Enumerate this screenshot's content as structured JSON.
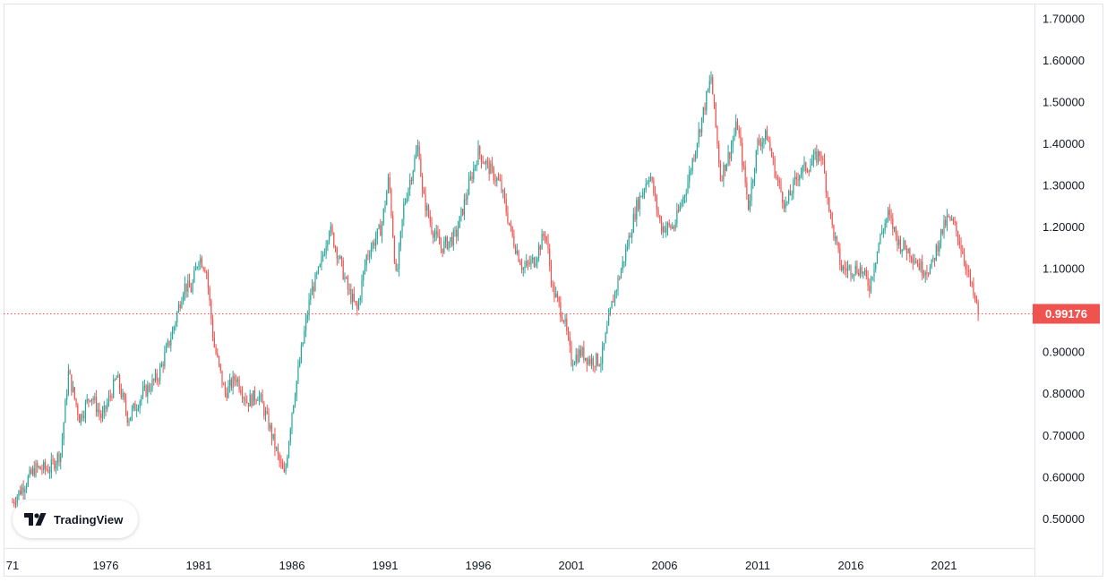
{
  "chart_data": {
    "type": "candlestick",
    "title": "",
    "xlabel": "",
    "ylabel": "",
    "x_start": 1971.0,
    "x_end": 2022.85,
    "ylim": [
      0.46,
      1.74
    ],
    "grid": false,
    "legend": "none",
    "y_ticks": [
      "1.70000",
      "1.60000",
      "1.50000",
      "1.40000",
      "1.30000",
      "1.20000",
      "1.10000",
      "0.90000",
      "0.80000",
      "0.70000",
      "0.60000",
      "0.50000"
    ],
    "x_ticks": [
      {
        "year": 1971,
        "label": "71"
      },
      {
        "year": 1976,
        "label": "1976"
      },
      {
        "year": 1981,
        "label": "1981"
      },
      {
        "year": 1986,
        "label": "1986"
      },
      {
        "year": 1991,
        "label": "1991"
      },
      {
        "year": 1996,
        "label": "1996"
      },
      {
        "year": 2001,
        "label": "2001"
      },
      {
        "year": 2006,
        "label": "2006"
      },
      {
        "year": 2011,
        "label": "2011"
      },
      {
        "year": 2016,
        "label": "2016"
      },
      {
        "year": 2021,
        "label": "2021"
      }
    ],
    "current_price": {
      "value": 0.99176,
      "label": "0.99176"
    },
    "up_color": "#26a69a",
    "down_color": "#ef5350",
    "price_path": [
      [
        1971.0,
        0.54
      ],
      [
        1971.6,
        0.58
      ],
      [
        1972.2,
        0.62
      ],
      [
        1973.0,
        0.62
      ],
      [
        1973.6,
        0.66
      ],
      [
        1974.0,
        0.85
      ],
      [
        1974.6,
        0.74
      ],
      [
        1975.2,
        0.8
      ],
      [
        1975.8,
        0.74
      ],
      [
        1976.6,
        0.84
      ],
      [
        1977.2,
        0.74
      ],
      [
        1978.0,
        0.8
      ],
      [
        1978.8,
        0.84
      ],
      [
        1979.6,
        0.95
      ],
      [
        1980.2,
        1.06
      ],
      [
        1980.6,
        1.05
      ],
      [
        1981.0,
        1.13
      ],
      [
        1981.4,
        1.1
      ],
      [
        1981.8,
        0.92
      ],
      [
        1982.4,
        0.8
      ],
      [
        1983.0,
        0.84
      ],
      [
        1983.6,
        0.78
      ],
      [
        1984.2,
        0.8
      ],
      [
        1984.8,
        0.72
      ],
      [
        1985.3,
        0.64
      ],
      [
        1985.6,
        0.6
      ],
      [
        1986.0,
        0.76
      ],
      [
        1986.5,
        0.9
      ],
      [
        1987.0,
        1.04
      ],
      [
        1987.5,
        1.1
      ],
      [
        1988.0,
        1.2
      ],
      [
        1988.5,
        1.13
      ],
      [
        1989.0,
        1.05
      ],
      [
        1989.5,
        1.0
      ],
      [
        1990.0,
        1.13
      ],
      [
        1990.8,
        1.2
      ],
      [
        1991.2,
        1.32
      ],
      [
        1991.6,
        1.07
      ],
      [
        1992.0,
        1.25
      ],
      [
        1992.8,
        1.4
      ],
      [
        1993.0,
        1.28
      ],
      [
        1993.5,
        1.2
      ],
      [
        1994.0,
        1.15
      ],
      [
        1994.8,
        1.18
      ],
      [
        1995.5,
        1.3
      ],
      [
        1996.0,
        1.38
      ],
      [
        1996.6,
        1.34
      ],
      [
        1997.2,
        1.3
      ],
      [
        1997.8,
        1.18
      ],
      [
        1998.4,
        1.1
      ],
      [
        1999.0,
        1.12
      ],
      [
        1999.6,
        1.19
      ],
      [
        2000.0,
        1.05
      ],
      [
        2000.6,
        0.98
      ],
      [
        2001.0,
        0.88
      ],
      [
        2001.5,
        0.9
      ],
      [
        2002.0,
        0.88
      ],
      [
        2002.6,
        0.88
      ],
      [
        2003.2,
        1.02
      ],
      [
        2003.8,
        1.12
      ],
      [
        2004.5,
        1.25
      ],
      [
        2005.2,
        1.33
      ],
      [
        2005.8,
        1.2
      ],
      [
        2006.5,
        1.2
      ],
      [
        2007.2,
        1.3
      ],
      [
        2007.8,
        1.42
      ],
      [
        2008.5,
        1.56
      ],
      [
        2009.0,
        1.32
      ],
      [
        2009.5,
        1.38
      ],
      [
        2009.9,
        1.45
      ],
      [
        2010.5,
        1.25
      ],
      [
        2011.0,
        1.4
      ],
      [
        2011.5,
        1.42
      ],
      [
        2012.0,
        1.32
      ],
      [
        2012.5,
        1.25
      ],
      [
        2013.2,
        1.33
      ],
      [
        2013.8,
        1.35
      ],
      [
        2014.4,
        1.38
      ],
      [
        2015.0,
        1.2
      ],
      [
        2015.5,
        1.1
      ],
      [
        2016.0,
        1.1
      ],
      [
        2016.5,
        1.1
      ],
      [
        2017.0,
        1.06
      ],
      [
        2017.6,
        1.18
      ],
      [
        2018.0,
        1.23
      ],
      [
        2018.6,
        1.16
      ],
      [
        2019.2,
        1.14
      ],
      [
        2019.8,
        1.1
      ],
      [
        2020.3,
        1.1
      ],
      [
        2020.8,
        1.18
      ],
      [
        2021.2,
        1.22
      ],
      [
        2021.6,
        1.2
      ],
      [
        2022.0,
        1.14
      ],
      [
        2022.5,
        1.05
      ],
      [
        2022.85,
        0.99176
      ]
    ]
  },
  "branding": {
    "logo_text": "TradingView",
    "logo_icon": "tradingview-logo-icon"
  }
}
